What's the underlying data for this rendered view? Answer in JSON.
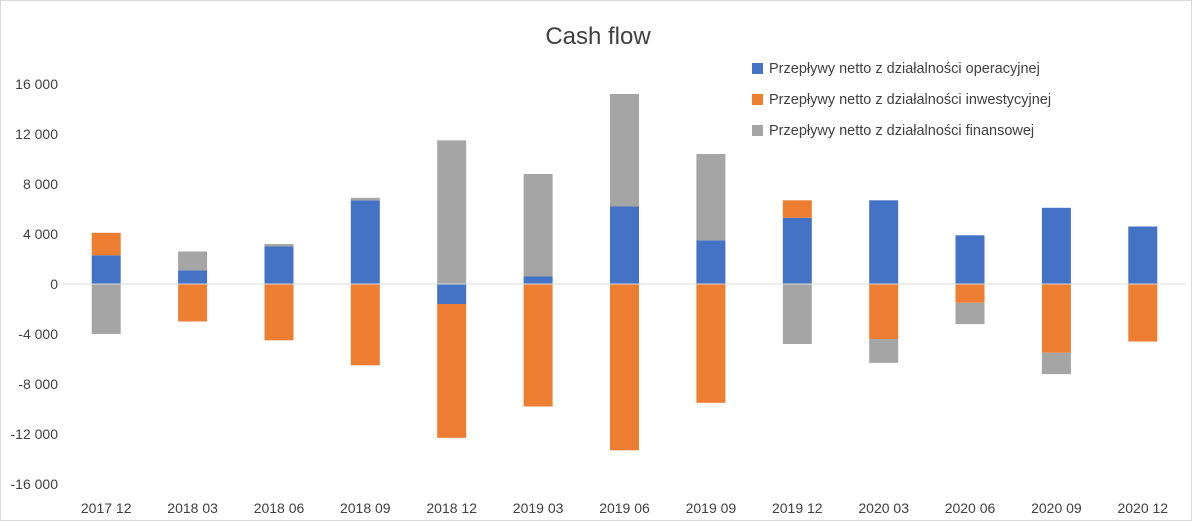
{
  "chart_data": {
    "type": "bar",
    "stacked": true,
    "title": "Cash flow",
    "xlabel": "",
    "ylabel": "",
    "ylim": [
      -16000,
      16000
    ],
    "yticks": [
      16000,
      12000,
      8000,
      4000,
      0,
      -4000,
      -8000,
      -12000,
      -16000
    ],
    "ytick_labels": [
      "16 000",
      "12 000",
      "8 000",
      "4 000",
      "0",
      "-4 000",
      "-8 000",
      "-12 000",
      "-16 000"
    ],
    "grid": false,
    "legend_position": "top-right",
    "categories": [
      "2017 12",
      "2018 03",
      "2018 06",
      "2018 09",
      "2018 12",
      "2019 03",
      "2019 06",
      "2019 09",
      "2019 12",
      "2020 03",
      "2020 06",
      "2020 09",
      "2020 12"
    ],
    "series": [
      {
        "name": "Przepływy netto z działalności operacyjnej",
        "color": "#4472c4",
        "values": [
          2300,
          1100,
          3000,
          6700,
          -1600,
          600,
          6200,
          3500,
          5300,
          6700,
          3900,
          6100,
          4600
        ]
      },
      {
        "name": "Przepływy netto z działalności inwestycyjnej",
        "color": "#ed7d31",
        "values": [
          1800,
          -3000,
          -4500,
          -6500,
          -10700,
          -9800,
          -13300,
          -9500,
          1400,
          -4400,
          -1500,
          -5500,
          -4600
        ]
      },
      {
        "name": "Przepływy netto z działalności finansowej",
        "color": "#a5a5a5",
        "values": [
          -4000,
          1500,
          200,
          200,
          11500,
          8200,
          9000,
          6900,
          -4800,
          -1900,
          -1700,
          -1700,
          0
        ]
      }
    ]
  }
}
